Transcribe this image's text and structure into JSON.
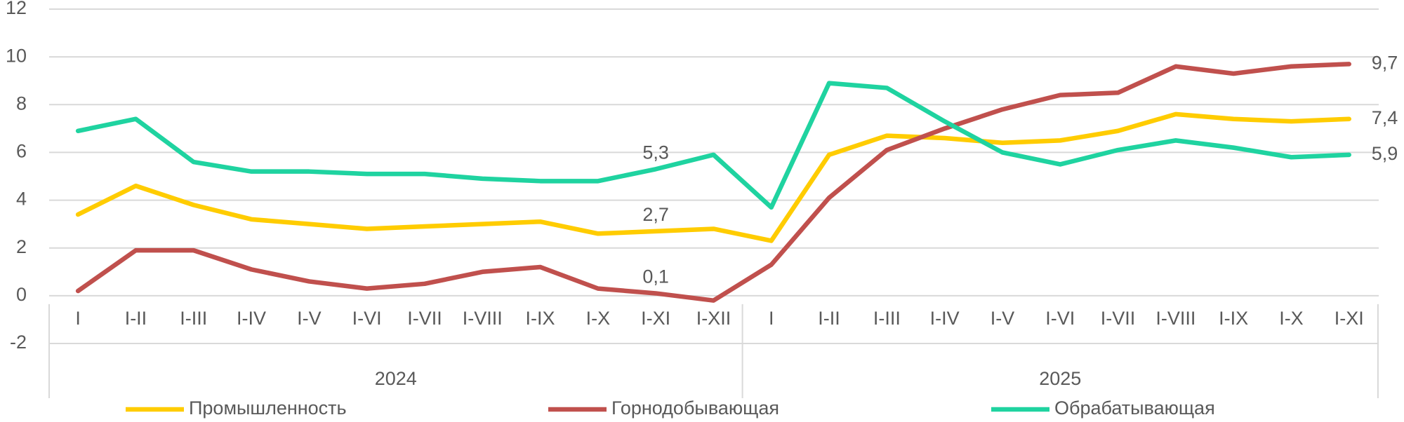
{
  "chart_data": {
    "type": "line",
    "groups": [
      {
        "name": "2024",
        "categories": [
          "I",
          "I-II",
          "I-III",
          "I-IV",
          "I-V",
          "I-VI",
          "I-VII",
          "I-VIII",
          "I-IX",
          "I-X",
          "I-XI",
          "I-XII"
        ]
      },
      {
        "name": "2025",
        "categories": [
          "I",
          "I-II",
          "I-III",
          "I-IV",
          "I-V",
          "I-VI",
          "I-VII",
          "I-VIII",
          "I-IX",
          "I-X",
          "I-XI"
        ]
      }
    ],
    "series": [
      {
        "name": "Промышленность",
        "color": "#ffcc00",
        "values": [
          3.4,
          4.6,
          3.8,
          3.2,
          3.0,
          2.8,
          2.9,
          3.0,
          3.1,
          2.6,
          2.7,
          2.8,
          2.3,
          5.9,
          6.7,
          6.6,
          6.4,
          6.5,
          6.9,
          7.6,
          7.4,
          7.3,
          7.4
        ],
        "value_labels": [
          null,
          null,
          null,
          null,
          null,
          null,
          null,
          null,
          null,
          null,
          "2,7",
          null,
          null,
          null,
          null,
          null,
          null,
          null,
          null,
          null,
          null,
          null,
          "7,4"
        ]
      },
      {
        "name": "Горнодобывающая",
        "color": "#c0504d",
        "values": [
          0.2,
          1.9,
          1.9,
          1.1,
          0.6,
          0.3,
          0.5,
          1.0,
          1.2,
          0.3,
          0.1,
          -0.2,
          1.3,
          4.1,
          6.1,
          7.0,
          7.8,
          8.4,
          8.5,
          9.6,
          9.3,
          9.6,
          9.7
        ],
        "value_labels": [
          null,
          null,
          null,
          null,
          null,
          null,
          null,
          null,
          null,
          null,
          "0,1",
          null,
          null,
          null,
          null,
          null,
          null,
          null,
          null,
          null,
          null,
          null,
          "9,7"
        ]
      },
      {
        "name": "Обрабатывающая",
        "color": "#1fd3a0",
        "values": [
          6.9,
          7.4,
          5.6,
          5.2,
          5.2,
          5.1,
          5.1,
          4.9,
          4.8,
          4.8,
          5.3,
          5.9,
          3.7,
          8.9,
          8.7,
          7.3,
          6.0,
          5.5,
          6.1,
          6.5,
          6.2,
          5.8,
          5.9
        ],
        "value_labels": [
          null,
          null,
          null,
          null,
          null,
          null,
          null,
          null,
          null,
          null,
          "5,3",
          null,
          null,
          null,
          null,
          null,
          null,
          null,
          null,
          null,
          null,
          null,
          "5,9"
        ]
      }
    ],
    "ylim": [
      -2,
      12
    ],
    "yticks": [
      -2,
      0,
      2,
      4,
      6,
      8,
      10,
      12
    ],
    "grid": true
  }
}
